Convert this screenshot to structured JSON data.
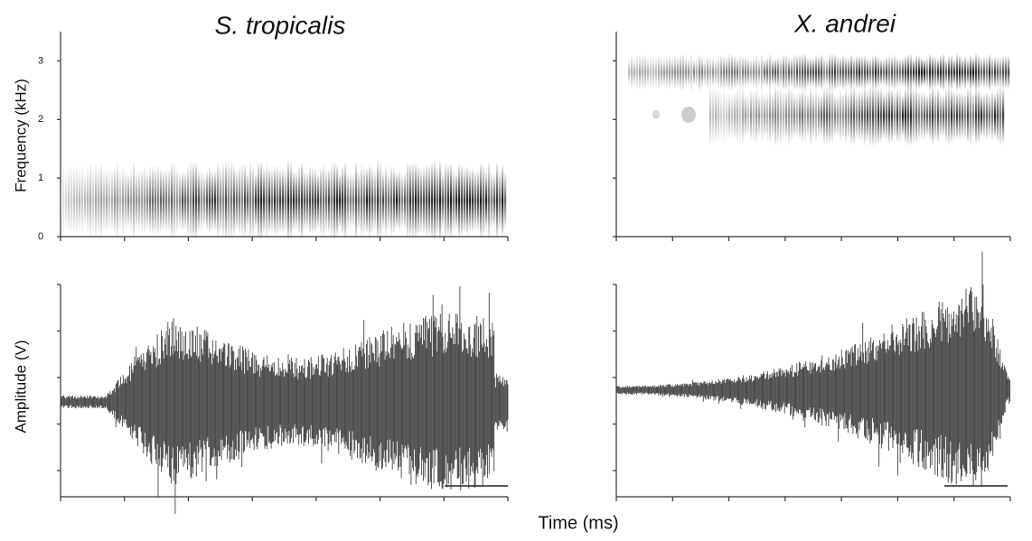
{
  "chart_data": [
    {
      "type": "spectrogram",
      "title": "S. tropicalis",
      "ylabel": "Frequency (kHz)",
      "ylim": [
        0,
        3.5
      ],
      "yticks": [
        0,
        1,
        2,
        3
      ]
    },
    {
      "type": "spectrogram",
      "title": "X. andrei",
      "ylim": [
        0,
        3.5
      ],
      "yticks": [
        0,
        1,
        2,
        3
      ]
    },
    {
      "type": "waveform",
      "ylabel": "Amplitude (V)"
    },
    {
      "type": "waveform"
    }
  ],
  "xlabel": "Time (ms)"
}
